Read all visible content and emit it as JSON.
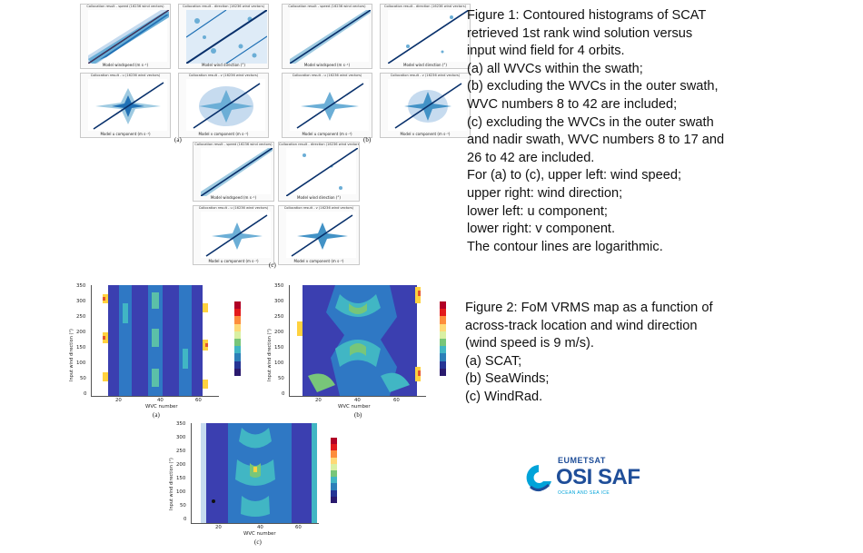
{
  "figure1": {
    "caption_lines": [
      "Figure 1: Contoured histograms of SCAT",
      "retrieved 1st rank wind solution versus",
      "input wind field for 4 orbits.",
      "(a) all WVCs within the swath;",
      "(b) excluding the WVCs in the outer swath,",
      "WVC numbers 8 to 42 are included;",
      "(c) excluding the WVCs in the outer swath",
      "and nadir swath, WVC numbers 8 to 17 and",
      "26 to 42 are included.",
      "For (a) to (c), upper left: wind speed;",
      "upper right: wind direction;",
      "lower left: u component;",
      "lower right: v component.",
      "The contour lines are logarithmic."
    ],
    "group_labels": {
      "a": "(a)",
      "b": "(b)",
      "c": "(c)"
    },
    "panel_titles": {
      "speed": "Collocation result - speed (16236 wind vectors)",
      "direction": "Collocation result - direction (16236 wind vectors)",
      "u": "Collocation result - u (16236 wind vectors)",
      "v": "Collocation result - v (16236 wind vectors)"
    },
    "panel_xlabels": {
      "speed": "Model windspeed (m s⁻¹)",
      "direction": "Model wind direction (°)",
      "u": "Model u component (m s⁻¹)",
      "v": "Model v component (m s⁻¹)"
    },
    "panel_ylabels": {
      "speed": "Scatterometer wind speed",
      "direction": "Scatterometer wind direction",
      "u": "Scatterometer u component",
      "v": "Scatterometer v component"
    }
  },
  "figure2": {
    "caption_lines": [
      "Figure 2: FoM VRMS map as a function of",
      "across-track location and wind direction",
      "(wind speed is 9 m/s).",
      "(a) SCAT;",
      "(b) SeaWinds;",
      "(c) WindRad."
    ],
    "group_labels": {
      "a": "(a)",
      "b": "(b)",
      "c": "(c)"
    },
    "y_axis_title": "Input wind direction (°)",
    "y_ticks": [
      "350",
      "300",
      "250",
      "200",
      "150",
      "100",
      "50",
      "0"
    ],
    "maps": {
      "a": {
        "x_title": "WVC number",
        "x_ticks": [
          "20",
          "40",
          "60"
        ]
      },
      "b": {
        "x_title": "WVC number",
        "x_ticks": [
          "20",
          "40",
          "60"
        ]
      },
      "c": {
        "x_title": "WVC number",
        "x_ticks": [
          "20",
          "40",
          "60"
        ]
      }
    },
    "colorbar_colors": [
      "#b10026",
      "#e31a1c",
      "#fd8d3c",
      "#fed976",
      "#d9f0a3",
      "#78c679",
      "#41b6c4",
      "#2c7fb8",
      "#253494",
      "#2a1a6e"
    ]
  },
  "logo": {
    "top_word": "EUMETSAT",
    "main_word": "OSI SAF",
    "sub_word": "OCEAN AND SEA ICE",
    "colors": {
      "blue": "#1f4e99",
      "cyan": "#00a3d9"
    }
  }
}
